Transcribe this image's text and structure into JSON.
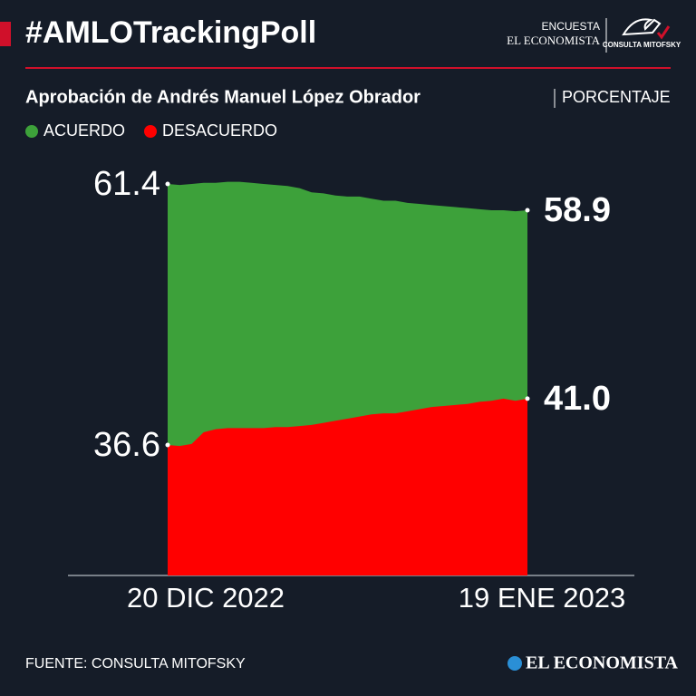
{
  "header": {
    "hashtag": "#AMLOTrackingPoll",
    "survey": "ENCUESTA",
    "publisher": "EL ECONOMISTA",
    "pollster": "CONSULTA MITOFSKY"
  },
  "chart_data": {
    "type": "area",
    "title": "Aprobación de Andrés Manuel López Obrador",
    "unit": "PORCENTAJE",
    "categories": [
      "20 DIC 2022",
      null,
      null,
      null,
      null,
      null,
      null,
      null,
      null,
      null,
      null,
      null,
      null,
      null,
      null,
      null,
      null,
      null,
      null,
      null,
      null,
      null,
      null,
      null,
      null,
      null,
      null,
      null,
      null,
      null,
      "19 ENE 2023"
    ],
    "series": [
      {
        "name": "ACUERDO",
        "color": "#3da13a",
        "values": [
          61.4,
          61.3,
          61.4,
          61.5,
          61.5,
          61.6,
          61.6,
          61.5,
          61.4,
          61.3,
          61.2,
          61.0,
          60.6,
          60.5,
          60.3,
          60.2,
          60.2,
          60.0,
          59.8,
          59.8,
          59.6,
          59.5,
          59.4,
          59.3,
          59.2,
          59.1,
          59.0,
          58.9,
          58.9,
          58.8,
          58.9
        ],
        "value_labels": [
          "61.4",
          null,
          null,
          null,
          null,
          null,
          null,
          null,
          null,
          null,
          null,
          null,
          null,
          null,
          null,
          null,
          null,
          null,
          null,
          null,
          null,
          null,
          null,
          null,
          null,
          null,
          null,
          null,
          null,
          null,
          "58.9"
        ]
      },
      {
        "name": "DESACUERDO",
        "color": "#ff0000",
        "values": [
          36.6,
          36.5,
          36.7,
          37.8,
          38.1,
          38.2,
          38.2,
          38.2,
          38.2,
          38.3,
          38.3,
          38.4,
          38.5,
          38.7,
          38.9,
          39.1,
          39.3,
          39.5,
          39.6,
          39.6,
          39.8,
          40.0,
          40.2,
          40.3,
          40.4,
          40.5,
          40.7,
          40.8,
          41.0,
          40.8,
          41.0
        ],
        "value_labels": [
          "36.6",
          null,
          null,
          null,
          null,
          null,
          null,
          null,
          null,
          null,
          null,
          null,
          null,
          null,
          null,
          null,
          null,
          null,
          null,
          null,
          null,
          null,
          null,
          null,
          null,
          null,
          null,
          null,
          null,
          null,
          "41.0"
        ]
      }
    ],
    "ylim": [
      24.2,
      65.1
    ]
  },
  "footer": {
    "source": "FUENTE: CONSULTA MITOFSKY",
    "logo": "EL ECONOMISTA"
  }
}
